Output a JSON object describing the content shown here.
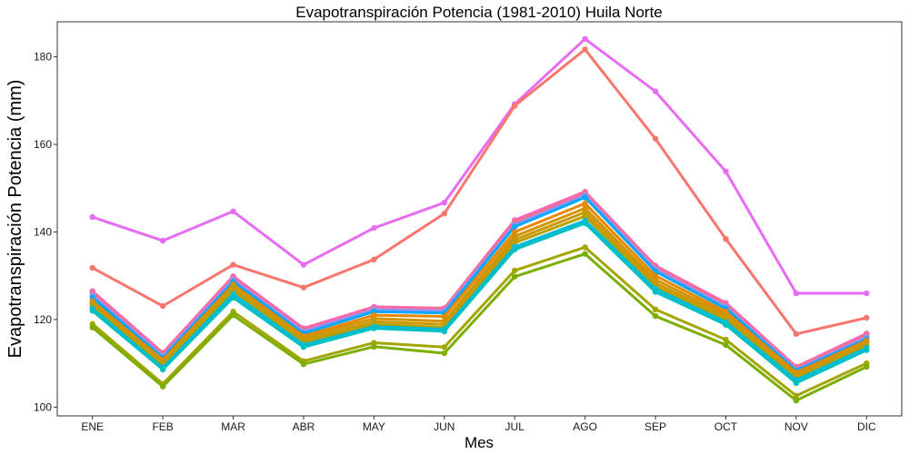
{
  "chart_data": {
    "type": "line",
    "title": "Evapotranspiración Potencia (1981-2010)  Huila Norte",
    "xlabel": "Mes",
    "ylabel": "Evapotranspiración Potencia  (mm)",
    "categories": [
      "ENE",
      "FEB",
      "MAR",
      "ABR",
      "MAY",
      "JUN",
      "JUL",
      "AGO",
      "SEP",
      "OCT",
      "NOV",
      "DIC"
    ],
    "ylim": [
      98,
      188
    ],
    "yticks": [
      100,
      120,
      140,
      160,
      180
    ],
    "grid": false,
    "legend": "none",
    "series": [
      {
        "color": "#E76BF3",
        "values": [
          143.4,
          138.0,
          144.7,
          132.5,
          140.9,
          146.7,
          169.2,
          184.1,
          172.1,
          153.8,
          126.0,
          126.0
        ]
      },
      {
        "color": "#F8766D",
        "values": [
          131.8,
          123.1,
          132.5,
          127.3,
          133.7,
          144.2,
          168.8,
          181.7,
          161.3,
          138.4,
          116.7,
          120.4
        ]
      },
      {
        "color": "#FF62BC",
        "values": [
          126.5,
          112.4,
          129.9,
          118.0,
          122.9,
          122.6,
          142.7,
          149.2,
          132.3,
          123.8,
          109.2,
          116.8
        ]
      },
      {
        "color": "#FC717F",
        "values": [
          126.0,
          112.1,
          129.5,
          117.6,
          122.6,
          122.4,
          142.2,
          148.8,
          131.9,
          123.4,
          108.9,
          116.4
        ]
      },
      {
        "color": "#9590FF",
        "values": [
          125.6,
          111.7,
          129.1,
          117.3,
          122.3,
          122.0,
          141.7,
          148.4,
          131.5,
          123.0,
          108.6,
          116.0
        ]
      },
      {
        "color": "#00A9FF",
        "values": [
          125.0,
          111.2,
          128.6,
          116.8,
          121.8,
          121.5,
          141.2,
          147.9,
          131.0,
          122.5,
          108.3,
          115.5
        ]
      },
      {
        "color": "#E58700",
        "values": [
          124.2,
          110.8,
          128.0,
          116.2,
          121.0,
          120.7,
          140.0,
          146.5,
          130.0,
          121.8,
          107.9,
          115.2
        ]
      },
      {
        "color": "#D39200",
        "values": [
          123.9,
          110.4,
          127.8,
          115.9,
          120.2,
          119.6,
          139.0,
          145.4,
          129.1,
          121.2,
          107.5,
          114.8
        ]
      },
      {
        "color": "#C99800",
        "values": [
          123.5,
          110.1,
          127.2,
          115.3,
          119.5,
          118.9,
          138.2,
          144.5,
          128.3,
          120.6,
          107.1,
          114.5
        ]
      },
      {
        "color": "#B79F00",
        "values": [
          122.9,
          109.7,
          126.6,
          114.8,
          118.9,
          118.2,
          137.5,
          143.6,
          127.6,
          120.0,
          106.6,
          114.0
        ]
      },
      {
        "color": "#00BCD8",
        "values": [
          122.5,
          109.0,
          125.8,
          114.2,
          118.4,
          117.8,
          136.6,
          142.6,
          127.0,
          119.4,
          106.2,
          113.5
        ]
      },
      {
        "color": "#00BFC4",
        "values": [
          122.0,
          108.6,
          125.0,
          113.7,
          118.0,
          117.3,
          136.0,
          142.0,
          126.3,
          118.8,
          105.5,
          113.0
        ]
      },
      {
        "color": "#A3A500",
        "values": [
          119.0,
          105.3,
          121.8,
          110.5,
          114.7,
          113.7,
          131.2,
          136.5,
          122.3,
          115.4,
          102.6,
          110.0
        ]
      },
      {
        "color": "#7CAE00",
        "values": [
          118.2,
          104.7,
          121.0,
          109.8,
          113.8,
          112.3,
          129.8,
          135.0,
          120.8,
          114.2,
          101.5,
          109.2
        ]
      }
    ]
  }
}
